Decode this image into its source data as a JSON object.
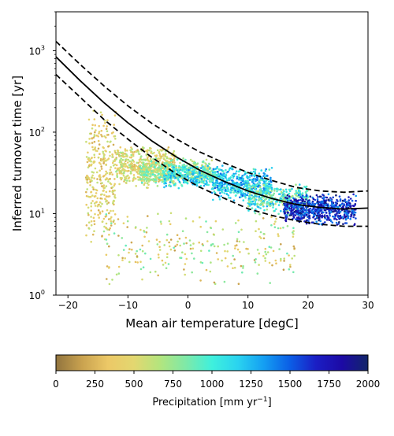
{
  "chart_data": {
    "type": "scatter",
    "xlabel": "Mean air temperature [degC]",
    "ylabel": "Inferred turnover time [yr]",
    "xlim": [
      -22,
      30
    ],
    "ylim": [
      1,
      3000
    ],
    "yscale": "log",
    "grid": false,
    "x_ticks": [
      -20,
      -10,
      0,
      10,
      20,
      30
    ],
    "y_ticks": [
      1,
      10,
      100,
      1000
    ],
    "y_tick_labels": [
      [
        "10",
        "0"
      ],
      [
        "10",
        "1"
      ],
      [
        "10",
        "2"
      ],
      [
        "10",
        "3"
      ]
    ],
    "fit_curve": [
      [
        -22,
        840
      ],
      [
        -18,
        430
      ],
      [
        -14,
        230
      ],
      [
        -10,
        130
      ],
      [
        -6,
        78
      ],
      [
        -2,
        50
      ],
      [
        2,
        34
      ],
      [
        6,
        25
      ],
      [
        10,
        19
      ],
      [
        14,
        15.3
      ],
      [
        18,
        13
      ],
      [
        22,
        11.9
      ],
      [
        26,
        11.4
      ],
      [
        30,
        11.7
      ]
    ],
    "upper_bound": [
      [
        -22,
        1300
      ],
      [
        -18,
        680
      ],
      [
        -14,
        370
      ],
      [
        -10,
        210
      ],
      [
        -6,
        128
      ],
      [
        -2,
        83
      ],
      [
        2,
        57
      ],
      [
        6,
        42
      ],
      [
        10,
        32
      ],
      [
        14,
        25.5
      ],
      [
        18,
        21
      ],
      [
        22,
        19
      ],
      [
        26,
        18.3
      ],
      [
        30,
        19
      ]
    ],
    "lower_bound": [
      [
        -22,
        510
      ],
      [
        -18,
        270
      ],
      [
        -14,
        143
      ],
      [
        -10,
        82
      ],
      [
        -6,
        49
      ],
      [
        -2,
        31
      ],
      [
        2,
        21
      ],
      [
        6,
        15.5
      ],
      [
        10,
        11.5
      ],
      [
        14,
        9.5
      ],
      [
        18,
        8.2
      ],
      [
        22,
        7.4
      ],
      [
        26,
        7.0
      ],
      [
        30,
        7.0
      ]
    ],
    "colorbar": {
      "label": "Precipitation [mm yr⁻¹]",
      "label_base": "Precipitation [mm yr",
      "label_sup": "−1",
      "label_end": "]",
      "min": 0,
      "max": 2000,
      "ticks": [
        0,
        250,
        500,
        750,
        1000,
        1250,
        1500,
        1750,
        2000
      ],
      "colormap": [
        "#91743e",
        "#c9a24f",
        "#ecc867",
        "#e3d770",
        "#b3e57e",
        "#7ee9a8",
        "#3ff0dd",
        "#2ad3f0",
        "#149ef2",
        "#0b5ee6",
        "#1b1ec4",
        "#1c0aa5",
        "#122669"
      ]
    },
    "clusters": [
      {
        "t": [
          -17,
          -12
        ],
        "y": [
          4,
          220
        ],
        "p": [
          200,
          650
        ],
        "n": 320
      },
      {
        "t": [
          -12,
          -2
        ],
        "y": [
          20,
          70
        ],
        "p": [
          250,
          750
        ],
        "n": 520
      },
      {
        "t": [
          -8,
          4
        ],
        "y": [
          22,
          50
        ],
        "p": [
          500,
          1000
        ],
        "n": 460
      },
      {
        "t": [
          -4,
          6
        ],
        "y": [
          20,
          40
        ],
        "p": [
          850,
          1350
        ],
        "n": 280
      },
      {
        "t": [
          4,
          14
        ],
        "y": [
          14,
          38
        ],
        "p": [
          850,
          1500
        ],
        "n": 460
      },
      {
        "t": [
          10,
          20
        ],
        "y": [
          10,
          24
        ],
        "p": [
          600,
          1300
        ],
        "n": 360
      },
      {
        "t": [
          16,
          28
        ],
        "y": [
          7,
          18
        ],
        "p": [
          1350,
          2000
        ],
        "n": 620
      },
      {
        "t": [
          -14,
          18
        ],
        "y": [
          1.3,
          12
        ],
        "p": [
          150,
          900
        ],
        "n": 260
      }
    ]
  }
}
